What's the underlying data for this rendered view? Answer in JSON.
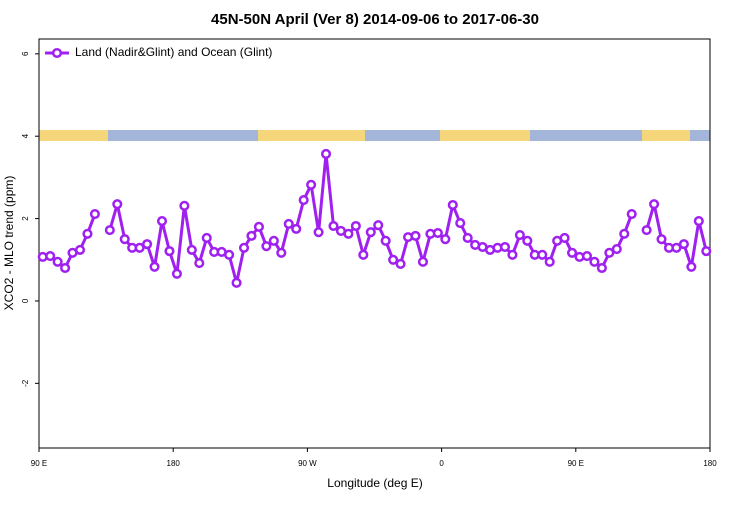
{
  "chart_data": {
    "type": "line",
    "title": "45N-50N April (Ver 8)   2014-09-06 to 2017-06-30",
    "xlabel": "Longitude (deg E)",
    "ylabel": "XCO2 - MLO trend (ppm)",
    "x": [
      92.5,
      97.5,
      102.5,
      107.5,
      112.5,
      117.5,
      122.5,
      127.5,
      132.5,
      137.5,
      142.5,
      147.5,
      152.5,
      157.5,
      162.5,
      167.5,
      172.5,
      177.5,
      182.5,
      187.5,
      192.5,
      197.5,
      202.5,
      207.5,
      212.5,
      217.5,
      222.5,
      227.5,
      232.5,
      237.5,
      242.5,
      247.5,
      252.5,
      257.5,
      262.5,
      267.5,
      272.5,
      277.5,
      282.5,
      287.5,
      292.5,
      297.5,
      302.5,
      307.5,
      312.5,
      317.5,
      322.5,
      327.5,
      332.5,
      337.5,
      342.5,
      347.5,
      352.5,
      357.5,
      362.5,
      367.5,
      372.5,
      377.5,
      382.5,
      387.5,
      392.5,
      397.5,
      402.5,
      407.5,
      412.5,
      417.5,
      422.5,
      427.5,
      432.5,
      437.5,
      442.5,
      447.5,
      452.5,
      457.5,
      462.5,
      467.5,
      472.5,
      477.5,
      482.5,
      487.5,
      492.5,
      497.5,
      502.5,
      507.5,
      512.5,
      517.5,
      522.5,
      527.5,
      532.5,
      537.5
    ],
    "series": [
      {
        "name": "Land (Nadir&Glint) and Ocean (Glint)",
        "color": "#a020f0",
        "values": [
          1.07,
          1.09,
          0.95,
          0.8,
          1.17,
          1.24,
          1.63,
          2.11,
          null,
          1.72,
          2.35,
          1.5,
          1.29,
          1.29,
          1.38,
          0.83,
          1.94,
          1.21,
          0.66,
          2.31,
          1.24,
          0.92,
          1.53,
          1.19,
          1.19,
          1.12,
          0.44,
          1.29,
          1.58,
          1.8,
          1.33,
          1.46,
          1.17,
          1.87,
          1.75,
          2.45,
          2.82,
          1.67,
          3.57,
          1.82,
          1.7,
          1.63,
          1.82,
          1.12,
          1.67,
          1.84,
          1.46,
          1.0,
          0.9,
          1.55,
          1.58,
          0.95,
          1.63,
          1.65,
          1.5,
          2.33,
          1.89,
          1.53,
          1.36,
          1.31,
          1.24,
          1.29,
          1.31,
          1.12,
          1.6,
          1.46,
          1.12,
          1.12,
          0.95,
          1.46,
          1.53,
          1.17,
          1.07,
          1.09,
          0.95,
          0.8,
          1.17,
          1.26,
          1.63,
          2.11,
          null,
          1.72,
          2.35,
          1.5,
          1.29,
          1.29,
          1.38,
          0.83,
          1.94,
          1.21
        ]
      }
    ],
    "xlim": [
      90,
      540
    ],
    "xticks": [
      {
        "value": 90,
        "label": "90 E"
      },
      180,
      {
        "value": 270,
        "label": "90 W"
      },
      {
        "value": 360,
        "label": "0"
      },
      {
        "value": 450,
        "label": "90 E"
      },
      {
        "value": 540,
        "label": "180"
      }
    ],
    "ylim": [
      -3.57,
      6.36
    ],
    "yticks": [
      -2,
      0,
      2,
      4,
      6
    ],
    "legend": "top-left"
  }
}
